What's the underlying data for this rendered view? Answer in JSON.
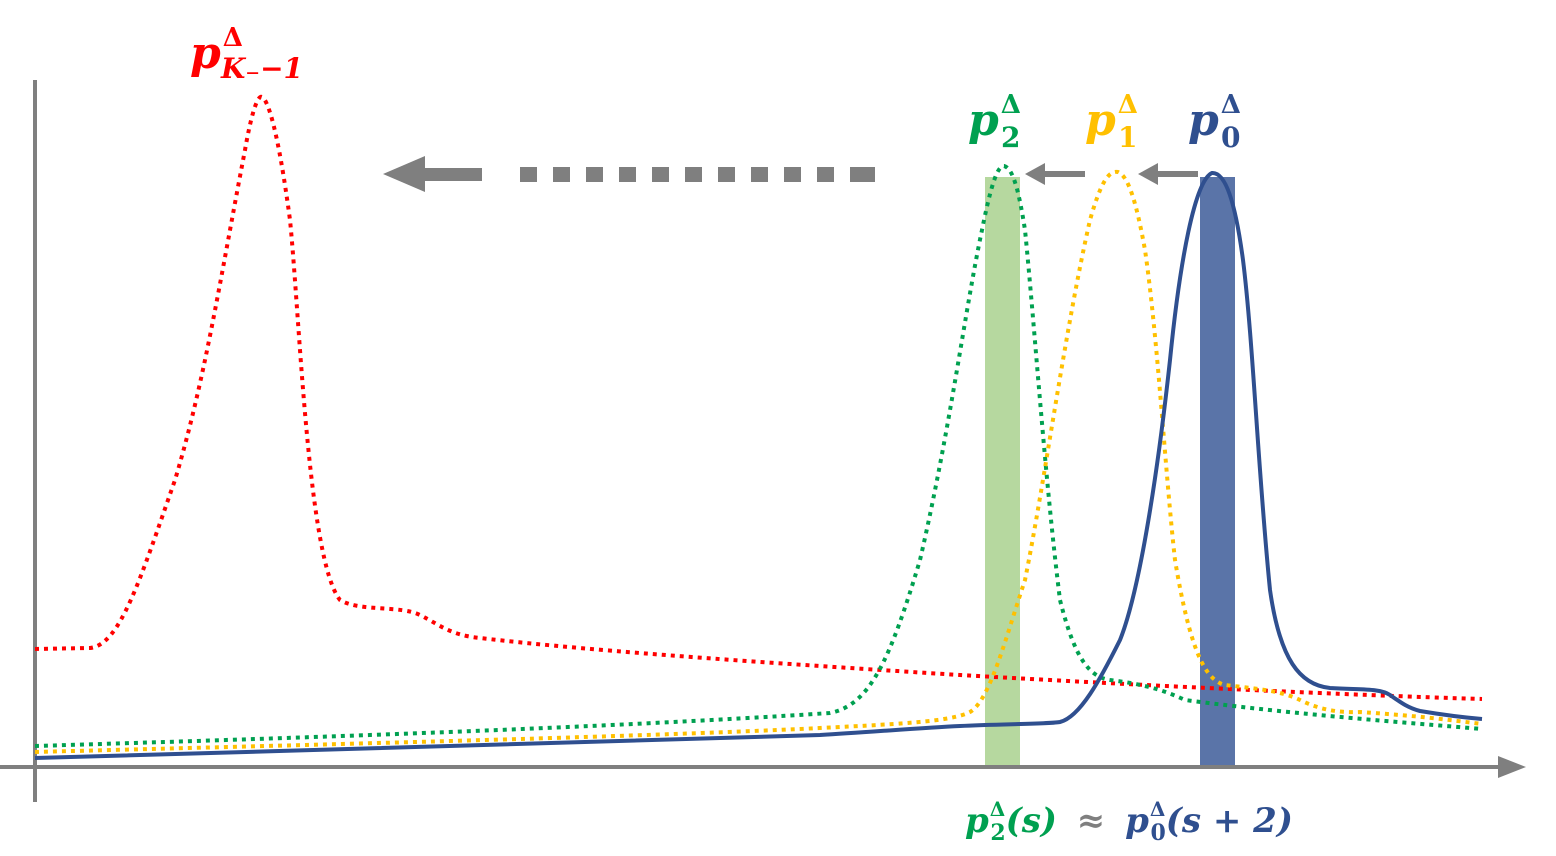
{
  "diagram": {
    "colors": {
      "red": "#ff0000",
      "green": "#00a050",
      "yellow": "#ffc000",
      "navy": "#2f4f8f",
      "gray": "#7f7f7f",
      "green_bar": "#a9d18e",
      "navy_bar": "#3d5c99"
    },
    "labels": {
      "p_K": {
        "base": "p",
        "sup": "Δ",
        "sub": "K₋−1"
      },
      "p_2": {
        "base": "p",
        "sup": "Δ",
        "sub": "2"
      },
      "p_1": {
        "base": "p",
        "sup": "Δ",
        "sub": "1"
      },
      "p_0": {
        "base": "p",
        "sup": "Δ",
        "sub": "0"
      }
    },
    "equation": {
      "lhs_base": "p",
      "lhs_sup": "Δ",
      "lhs_sub": "2",
      "lhs_arg": "(s)",
      "approx": "≈",
      "rhs_base": "p",
      "rhs_sup": "Δ",
      "rhs_sub": "0",
      "rhs_arg": "(s + 2)"
    },
    "curves": [
      {
        "name": "red-dotted-curve",
        "color": "red",
        "dashed": true
      },
      {
        "name": "green-dotted-curve",
        "color": "green",
        "dashed": true
      },
      {
        "name": "yellow-dotted-curve",
        "color": "yellow",
        "dashed": true
      },
      {
        "name": "navy-solid-curve",
        "color": "navy",
        "dashed": false
      }
    ]
  }
}
